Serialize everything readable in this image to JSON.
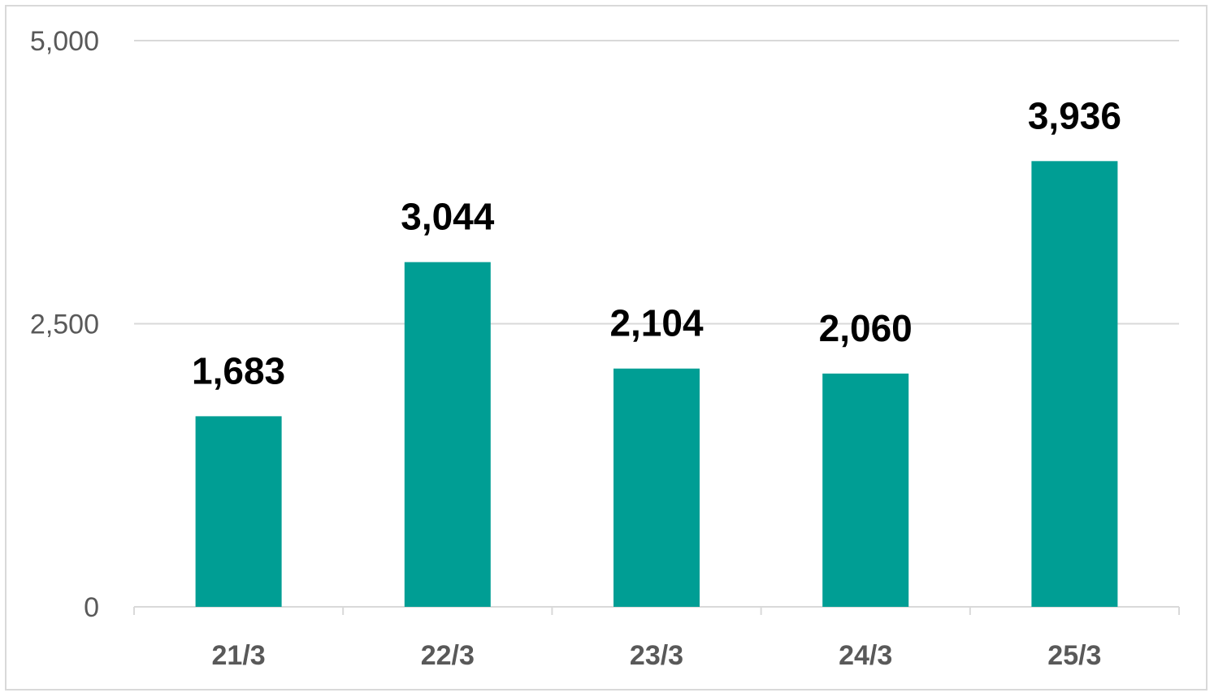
{
  "chart_data": {
    "type": "bar",
    "categories": [
      "21/3",
      "22/3",
      "23/3",
      "24/3",
      "25/3"
    ],
    "values": [
      1683,
      3044,
      2104,
      2060,
      3936
    ],
    "data_labels": [
      "1,683",
      "3,044",
      "2,104",
      "2,060",
      "3,936"
    ],
    "title": "",
    "xlabel": "",
    "ylabel": "",
    "ylim": [
      0,
      5000
    ],
    "yticks": [
      0,
      2500,
      5000
    ],
    "ytick_labels": [
      "0",
      "2,500",
      "5,000"
    ],
    "grid": true,
    "legend": "none",
    "bar_color": "#009e94",
    "grid_color": "#d9d9d9"
  }
}
